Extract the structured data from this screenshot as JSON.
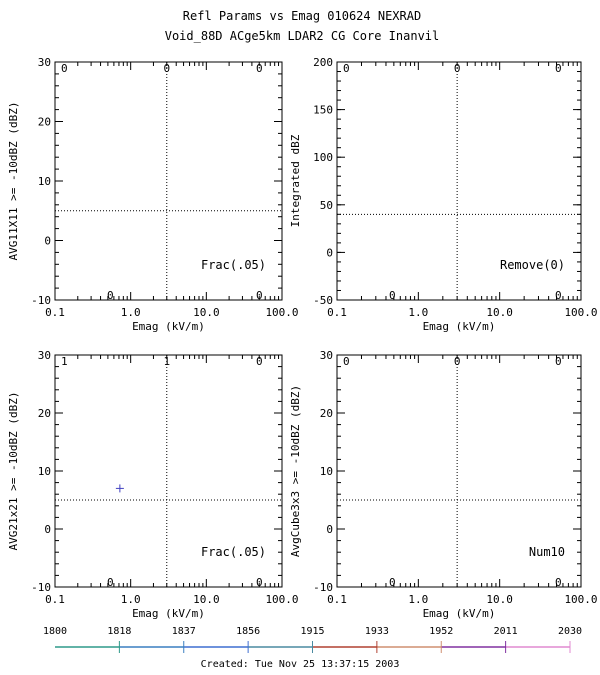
{
  "header": {
    "title": "Refl Params vs Emag   010624  NEXRAD",
    "subtitle": "Void_88D ACge5km LDAR2 CG Core Inanvil"
  },
  "footer": {
    "created": "Created: Tue Nov 25 13:37:15 2003"
  },
  "timeline": {
    "labels": [
      "1800",
      "1818",
      "1837",
      "1856",
      "1915",
      "1933",
      "1952",
      "2011",
      "2030"
    ],
    "colors": [
      "#2e9a8a",
      "#3a7fc0",
      "#3f6fd0",
      "#4a8aa0",
      "#b04030",
      "#cf8f70",
      "#8030a0",
      "#e08ad0"
    ]
  },
  "chart_data": [
    {
      "type": "scatter",
      "xlabel": "Emag (kV/m)",
      "ylabel": "AVG11X11 >= -10dBZ (dBZ)",
      "x_scale": "log",
      "xlim": [
        0.1,
        100
      ],
      "ylim": [
        -10,
        30
      ],
      "x_ticks": [
        "0.1",
        "1.0",
        "10.0",
        "100.0"
      ],
      "y_ticks": [
        "-10",
        "0",
        "10",
        "20",
        "30"
      ],
      "vline": 3,
      "hline": 5,
      "corner_counts": {
        "top_left": "0",
        "top_right": "0",
        "bottom_left": "0",
        "bottom_right": "0",
        "top_mid": "0"
      },
      "annotation": "Frac(.05)",
      "points": []
    },
    {
      "type": "scatter",
      "xlabel": "Emag (kV/m)",
      "ylabel": "Integrated dBZ",
      "x_scale": "log",
      "xlim": [
        0.1,
        100
      ],
      "ylim": [
        -50,
        200
      ],
      "x_ticks": [
        "0.1",
        "1.0",
        "10.0",
        "100.0"
      ],
      "y_ticks": [
        "-50",
        "0",
        "50",
        "100",
        "150",
        "200"
      ],
      "vline": 3,
      "hline": 40,
      "corner_counts": {
        "top_left": "0",
        "top_right": "0",
        "bottom_left": "0",
        "bottom_right": "0",
        "top_mid": "0"
      },
      "annotation": "Remove(0)",
      "points": []
    },
    {
      "type": "scatter",
      "xlabel": "Emag (kV/m)",
      "ylabel": "AVG21x21 >= -10dBZ (dBZ)",
      "x_scale": "log",
      "xlim": [
        0.1,
        100
      ],
      "ylim": [
        -10,
        30
      ],
      "x_ticks": [
        "0.1",
        "1.0",
        "10.0",
        "100.0"
      ],
      "y_ticks": [
        "-10",
        "0",
        "10",
        "20",
        "30"
      ],
      "vline": 3,
      "hline": 5,
      "corner_counts": {
        "top_left": "1",
        "top_right": "0",
        "bottom_left": "0",
        "bottom_right": "0",
        "top_mid": "1"
      },
      "annotation": "Frac(.05)",
      "points": [
        {
          "x": 0.72,
          "y": 7,
          "color": "#4040c0"
        }
      ]
    },
    {
      "type": "scatter",
      "xlabel": "Emag (kV/m)",
      "ylabel": "AvgCube3x3 >= -10dBZ (dBZ)",
      "x_scale": "log",
      "xlim": [
        0.1,
        100
      ],
      "ylim": [
        -10,
        30
      ],
      "x_ticks": [
        "0.1",
        "1.0",
        "10.0",
        "100.0"
      ],
      "y_ticks": [
        "-10",
        "0",
        "10",
        "20",
        "30"
      ],
      "vline": 3,
      "hline": 5,
      "corner_counts": {
        "top_left": "0",
        "top_right": "0",
        "bottom_left": "0",
        "bottom_right": "0",
        "top_mid": "0"
      },
      "annotation": "Num10",
      "points": []
    }
  ]
}
